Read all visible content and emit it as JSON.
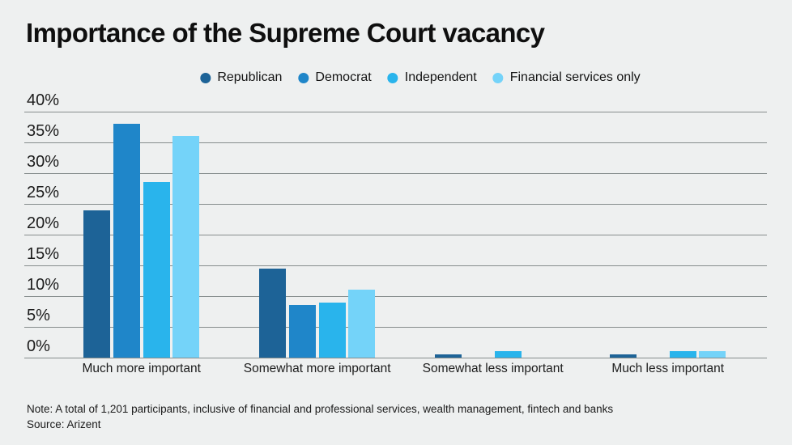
{
  "title": "Importance of the Supreme Court vacancy",
  "legend": [
    {
      "label": "Republican",
      "color": "#1d6397"
    },
    {
      "label": "Democrat",
      "color": "#1f86c9"
    },
    {
      "label": "Independent",
      "color": "#29b4ec"
    },
    {
      "label": "Financial services only",
      "color": "#74d3f9"
    }
  ],
  "chart_data": {
    "type": "bar",
    "title": "Importance of the Supreme Court vacancy",
    "categories": [
      "Much more important",
      "Somewhat more important",
      "Somewhat less important",
      "Much less important"
    ],
    "series": [
      {
        "name": "Republican",
        "color": "#1d6397",
        "values": [
          24,
          14.5,
          0.5,
          0.5
        ]
      },
      {
        "name": "Democrat",
        "color": "#1f86c9",
        "values": [
          38,
          8.5,
          0,
          0
        ]
      },
      {
        "name": "Independent",
        "color": "#29b4ec",
        "values": [
          28.5,
          9,
          1,
          1
        ]
      },
      {
        "name": "Financial services only",
        "color": "#74d3f9",
        "values": [
          36,
          11,
          0,
          1
        ]
      }
    ],
    "xlabel": "",
    "ylabel": "",
    "ylim": [
      0,
      40
    ],
    "ytick_step": 5,
    "ytick_labels": [
      "0%",
      "5%",
      "10%",
      "15%",
      "20%",
      "25%",
      "30%",
      "35%",
      "40%"
    ],
    "grid": true,
    "gridline_color": "#868d8d",
    "legend_position": "top",
    "background_color": "#eef0f0"
  },
  "footer": {
    "note": "Note: A total of 1,201 participants, inclusive of financial and professional services, wealth management, fintech and banks",
    "source": "Source: Arizent"
  }
}
